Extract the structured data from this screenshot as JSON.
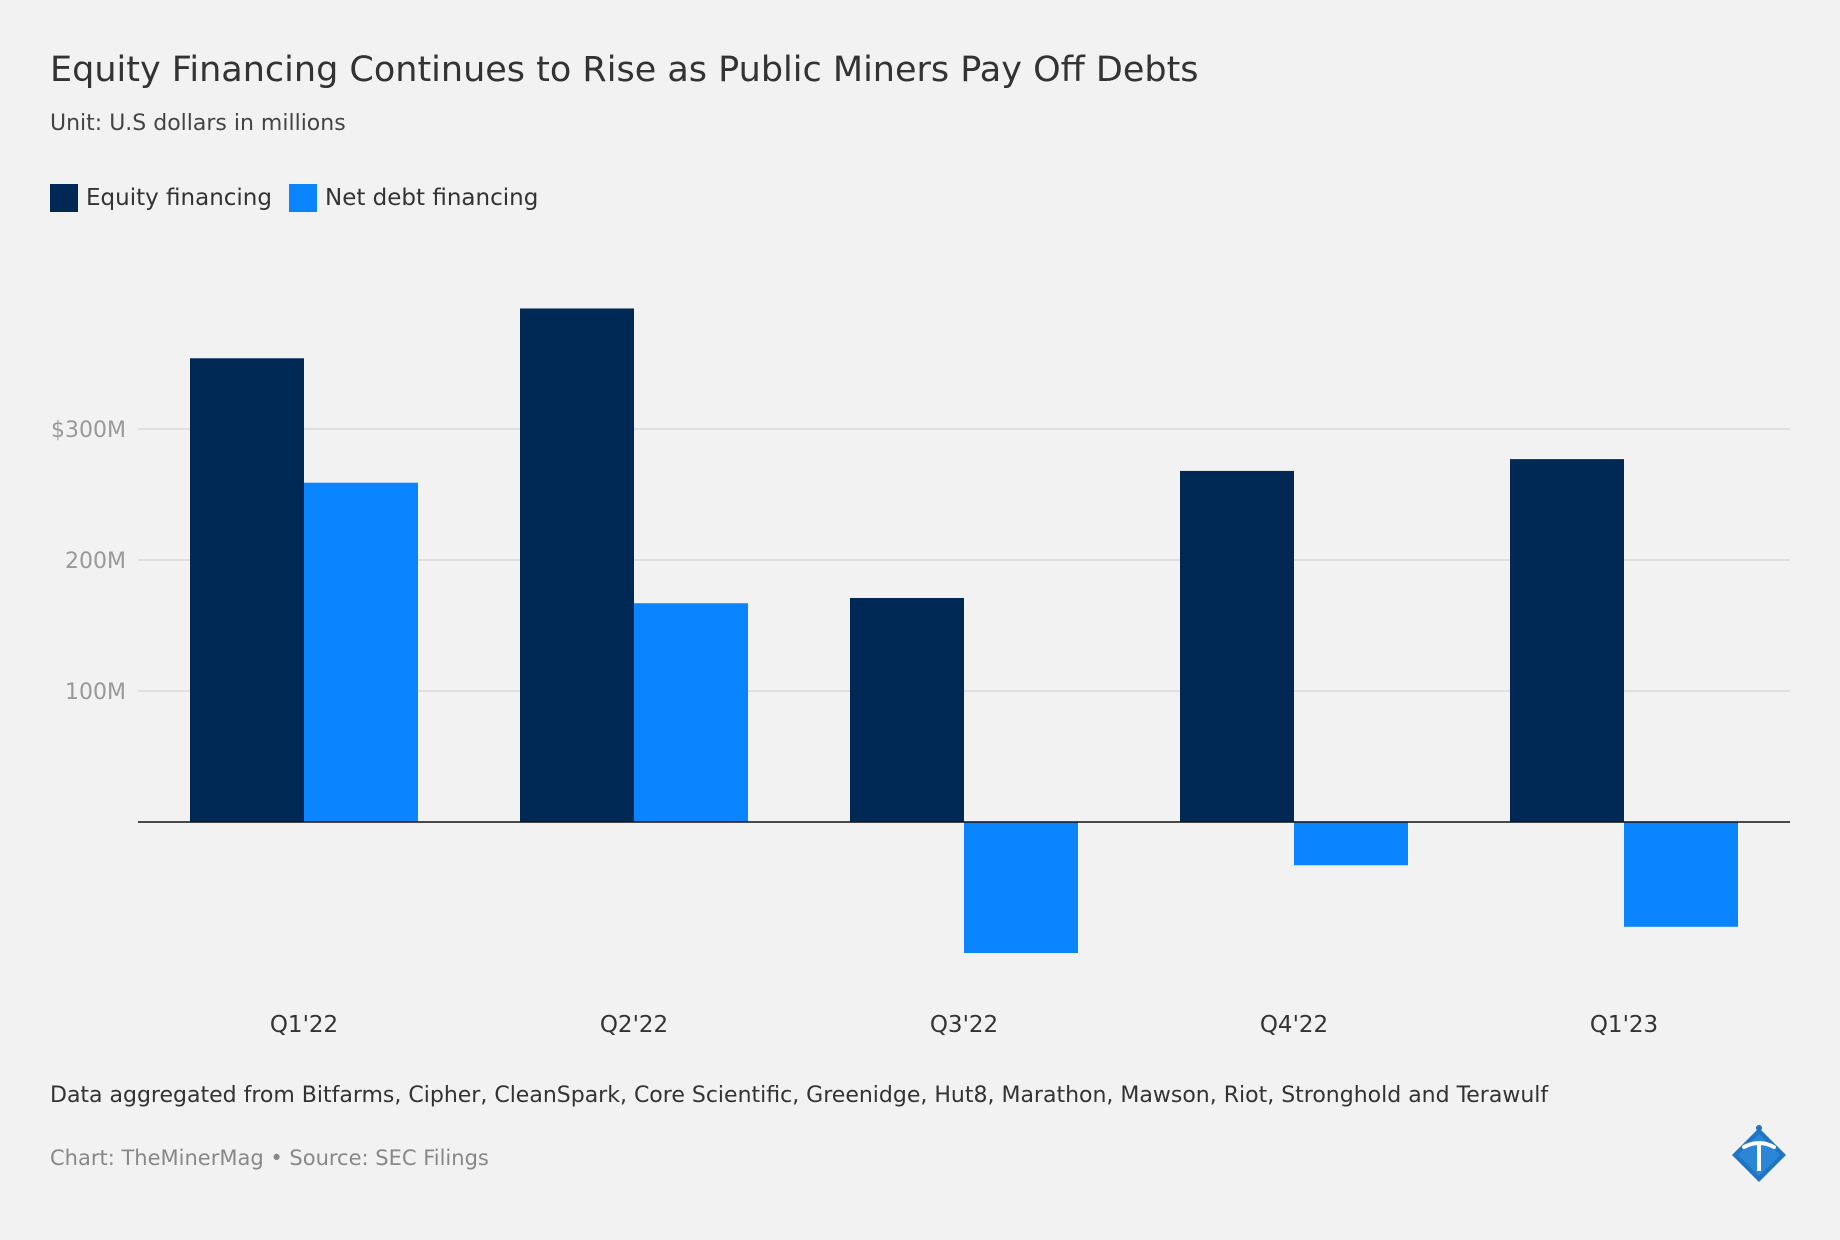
{
  "title": "Equity Financing Continues to Rise as Public Miners Pay Off Debts",
  "subtitle": "Unit: U.S dollars in millions",
  "note": "Data aggregated from Bitfarms, Cipher, CleanSpark, Core Scientific, Greenidge, Hut8, Marathon, Mawson, Riot, Stronghold and Terawulf",
  "credit": "Chart: TheMinerMag • Source: SEC Filings",
  "colors": {
    "equity": "#002855",
    "net_debt": "#0a84ff",
    "grid": "#d9d9d9",
    "axis_text": "#999999",
    "zero_line": "#111111"
  },
  "legend": [
    {
      "label": "Equity financing",
      "color": "#002855"
    },
    {
      "label": "Net debt financing",
      "color": "#0a84ff"
    }
  ],
  "chart_data": {
    "type": "bar",
    "title": "Equity Financing Continues to Rise as Public Miners Pay Off Debts",
    "subtitle": "Unit: U.S dollars in millions",
    "categories": [
      "Q1'22",
      "Q2'22",
      "Q3'22",
      "Q4'22",
      "Q1'23"
    ],
    "series": [
      {
        "name": "Equity financing",
        "values": [
          354,
          392,
          171,
          268,
          277
        ]
      },
      {
        "name": "Net debt financing",
        "values": [
          259,
          167,
          -100,
          -33,
          -80
        ]
      }
    ],
    "yticks": [
      {
        "value": 100,
        "label": "100M"
      },
      {
        "value": 200,
        "label": "200M"
      },
      {
        "value": 300,
        "label": "$300M"
      }
    ],
    "ylim": [
      -100,
      400
    ],
    "grid": true,
    "legend_position": "top-left",
    "xlabel": "",
    "ylabel": ""
  },
  "logo": {
    "icon": "pickaxe-logo-icon"
  }
}
